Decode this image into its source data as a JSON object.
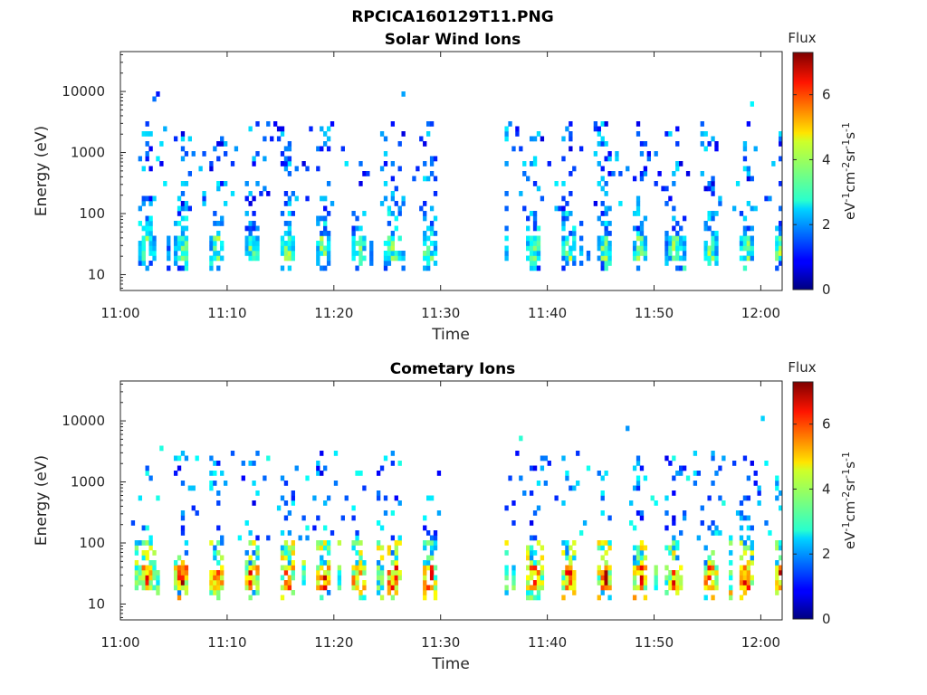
{
  "figure_title": "RPCICA160129T11.PNG",
  "chart_data": [
    {
      "type": "heatmap",
      "title": "Solar Wind Ions",
      "xlabel": "Time",
      "ylabel": "Energy (eV)",
      "x_ticks": [
        "11:00",
        "11:10",
        "11:20",
        "11:30",
        "11:40",
        "11:50",
        "12:00"
      ],
      "xlim": [
        "11:00",
        "12:02"
      ],
      "y_ticks": [
        "10",
        "100",
        "1000",
        "10000"
      ],
      "ylim": [
        5.5,
        45000
      ],
      "y_scale": "log",
      "colorbar_title": "Flux",
      "colorbar_ticks": [
        "0",
        "2",
        "4",
        "6"
      ],
      "colorbar_range": [
        0,
        7.3
      ],
      "colorbar_unit_html": "eV<tspan dy='-6' font-size='11'>-1</tspan><tspan dy='6'>cm</tspan><tspan dy='-6' font-size='11'>-2</tspan><tspan dy='6'>sr</tspan><tspan dy='-6' font-size='11'>-1</tspan><tspan dy='6'>s</tspan><tspan dy='-6' font-size='11'>-1</tspan>",
      "data_gap": [
        "11:30",
        "11:36"
      ],
      "colormap": "jet",
      "low_band_level": 3.6,
      "high_scatter_level": 2.2
    },
    {
      "type": "heatmap",
      "title": "Cometary Ions",
      "xlabel": "Time",
      "ylabel": "Energy (eV)",
      "x_ticks": [
        "11:00",
        "11:10",
        "11:20",
        "11:30",
        "11:40",
        "11:50",
        "12:00"
      ],
      "xlim": [
        "11:00",
        "12:02"
      ],
      "y_ticks": [
        "10",
        "100",
        "1000",
        "10000"
      ],
      "ylim": [
        5.5,
        45000
      ],
      "y_scale": "log",
      "colorbar_title": "Flux",
      "colorbar_ticks": [
        "0",
        "2",
        "4",
        "6"
      ],
      "colorbar_range": [
        0,
        7.3
      ],
      "data_gap": [
        "11:30",
        "11:36"
      ],
      "colormap": "jet",
      "low_band_level": 6.0,
      "high_scatter_level": 2.5
    }
  ]
}
